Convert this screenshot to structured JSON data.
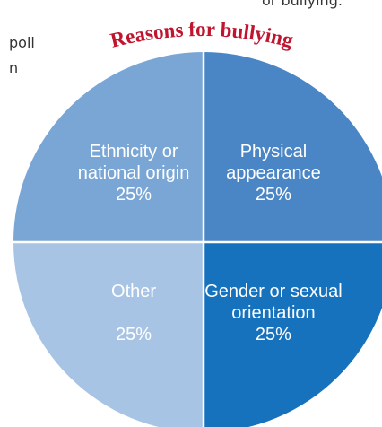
{
  "page_text": {
    "top_fragment": "or bullying.",
    "left_line_1": "poll",
    "left_line_2": "n"
  },
  "chart_data": {
    "type": "pie",
    "title": "Reasons for bullying",
    "title_color": "#c0152f",
    "label_color": "#ffffff",
    "divider_color": "#ffffff",
    "slices": [
      {
        "lines": [
          "Physical",
          "appearance",
          "25%"
        ],
        "value": 25,
        "color": "#4a86c5"
      },
      {
        "lines": [
          "Gender or sexual",
          "orientation",
          "25%"
        ],
        "value": 25,
        "color": "#1772bd"
      },
      {
        "lines": [
          "Other",
          "",
          "25%"
        ],
        "value": 25,
        "color": "#a8c4e4"
      },
      {
        "lines": [
          "Ethnicity or",
          "national origin",
          "25%"
        ],
        "value": 25,
        "color": "#7aa6d6"
      }
    ]
  }
}
